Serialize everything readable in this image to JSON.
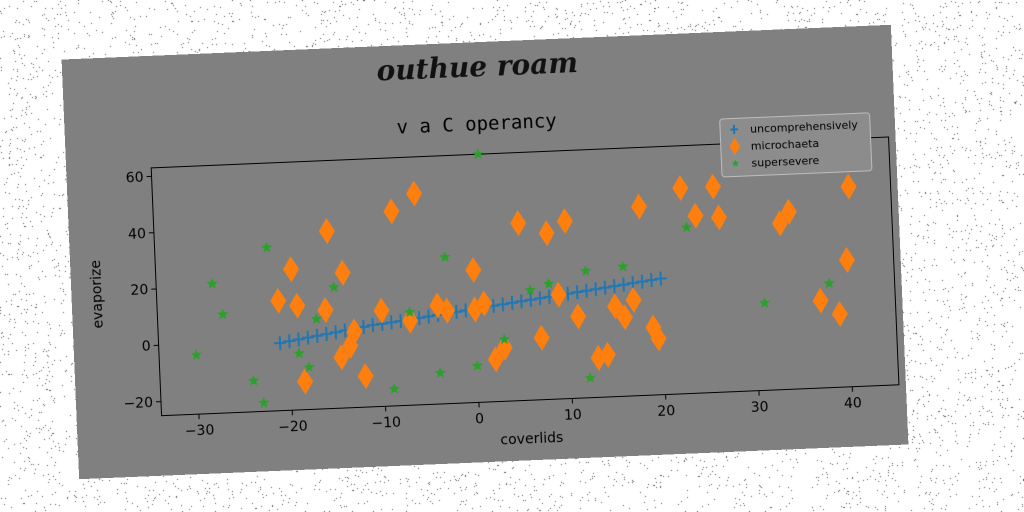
{
  "figure": {
    "suptitle": "outhue roam",
    "background": "#808080"
  },
  "chart_data": {
    "type": "scatter",
    "title": "v a C operancy",
    "xlabel": "coverlids",
    "ylabel": "evaporize",
    "xlim": [
      -34,
      45
    ],
    "ylim": [
      -25,
      63
    ],
    "xticks": [
      -30,
      -20,
      -10,
      0,
      10,
      20,
      30,
      40
    ],
    "yticks": [
      -20,
      0,
      20,
      40,
      60
    ],
    "grid": false,
    "legend_position": "top-right",
    "series": [
      {
        "name": "uncomprehensively",
        "marker": "plus",
        "color": "#1f77b4",
        "points": [
          [
            -21,
            -1
          ],
          [
            -20,
            -0.5
          ],
          [
            -19,
            0
          ],
          [
            -18,
            0.5
          ],
          [
            -17,
            1
          ],
          [
            -16,
            1.5
          ],
          [
            -15,
            2
          ],
          [
            -14,
            2.5
          ],
          [
            -13,
            3
          ],
          [
            -12,
            3.5
          ],
          [
            -11,
            4
          ],
          [
            -10,
            4.3
          ],
          [
            -9,
            4.7
          ],
          [
            -8,
            5
          ],
          [
            -7,
            5.4
          ],
          [
            -6,
            5.8
          ],
          [
            -5,
            6.2
          ],
          [
            -4,
            6.6
          ],
          [
            -3,
            7
          ],
          [
            -2,
            7.4
          ],
          [
            -1,
            7.8
          ],
          [
            0,
            8.2
          ],
          [
            1,
            8.6
          ],
          [
            2,
            9
          ],
          [
            3,
            9.4
          ],
          [
            4,
            9.8
          ],
          [
            5,
            10.2
          ],
          [
            6,
            10.6
          ],
          [
            7,
            11
          ],
          [
            8,
            11.4
          ],
          [
            9,
            11.8
          ],
          [
            10,
            12.2
          ],
          [
            11,
            12.6
          ],
          [
            12,
            13
          ],
          [
            13,
            13.4
          ],
          [
            14,
            13.8
          ],
          [
            15,
            14.2
          ],
          [
            16,
            14.6
          ],
          [
            17,
            15
          ],
          [
            18,
            15.4
          ],
          [
            19,
            15.8
          ],
          [
            20,
            16.2
          ]
        ]
      },
      {
        "name": "microchaeta",
        "marker": "diamond",
        "color": "#ff7f0e",
        "points": [
          [
            -21,
            14
          ],
          [
            -19.5,
            25
          ],
          [
            -19,
            12
          ],
          [
            -18.5,
            -15
          ],
          [
            -16,
            10
          ],
          [
            -15.5,
            38
          ],
          [
            -14.5,
            -7
          ],
          [
            -14,
            23
          ],
          [
            -13.5,
            -3
          ],
          [
            -13,
            2
          ],
          [
            -12,
            -14
          ],
          [
            -10,
            9
          ],
          [
            -8.5,
            44
          ],
          [
            -7,
            5
          ],
          [
            -6,
            50
          ],
          [
            -4,
            10
          ],
          [
            -3,
            8
          ],
          [
            0,
            22
          ],
          [
            0,
            8
          ],
          [
            1,
            10
          ],
          [
            2,
            -10
          ],
          [
            3,
            -6
          ],
          [
            5,
            38
          ],
          [
            7,
            -3
          ],
          [
            8,
            34
          ],
          [
            9,
            12
          ],
          [
            10,
            38
          ],
          [
            11,
            4
          ],
          [
            13,
            -11
          ],
          [
            14,
            -10
          ],
          [
            15,
            7
          ],
          [
            16,
            3
          ],
          [
            17,
            9
          ],
          [
            18,
            42
          ],
          [
            19,
            -1
          ],
          [
            19.5,
            -5
          ],
          [
            22.5,
            48
          ],
          [
            24,
            38
          ],
          [
            26,
            48
          ],
          [
            26.5,
            37
          ],
          [
            33,
            34
          ],
          [
            34,
            38
          ],
          [
            37,
            6
          ],
          [
            39,
            1
          ],
          [
            40,
            20
          ],
          [
            40.5,
            46
          ]
        ]
      },
      {
        "name": "supersevere",
        "marker": "star",
        "color": "#2ca02c",
        "points": [
          [
            -30,
            -4
          ],
          [
            -28,
            21
          ],
          [
            -27,
            10
          ],
          [
            -24,
            -14
          ],
          [
            -23,
            -22
          ],
          [
            -22,
            33
          ],
          [
            -19,
            -5
          ],
          [
            -18,
            -10
          ],
          [
            -17,
            7
          ],
          [
            -15,
            18
          ],
          [
            -9,
            -19
          ],
          [
            -7,
            8
          ],
          [
            -4,
            -14
          ],
          [
            -3,
            27
          ],
          [
            0,
            -12
          ],
          [
            1,
            63
          ],
          [
            3,
            -3
          ],
          [
            6,
            14
          ],
          [
            8,
            16
          ],
          [
            12,
            20
          ],
          [
            12,
            -18
          ],
          [
            16,
            21
          ],
          [
            23,
            34
          ],
          [
            31,
            6
          ],
          [
            38,
            12
          ]
        ]
      }
    ]
  }
}
